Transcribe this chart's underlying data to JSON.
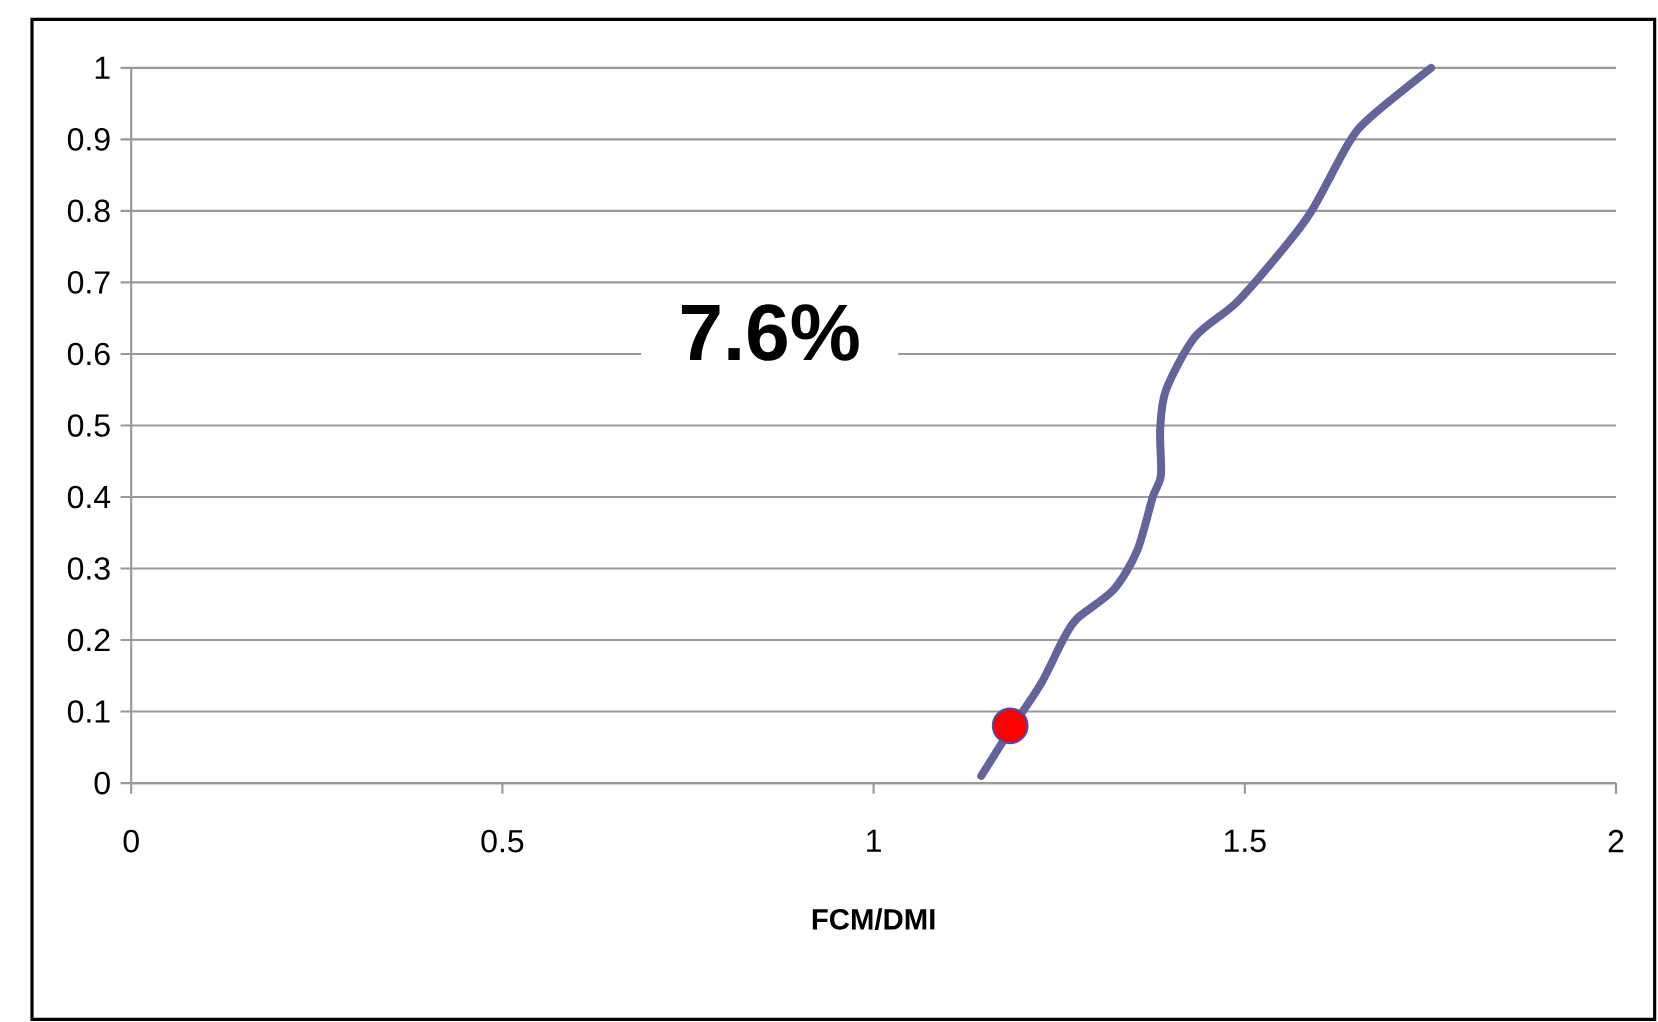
{
  "chart_data": {
    "type": "line",
    "xlabel": "FCM/DMI",
    "annotations": [
      "7.6%"
    ],
    "xlim": [
      0,
      2
    ],
    "xticks": [
      0,
      0.5,
      1,
      1.5,
      2
    ],
    "ylim": [
      0,
      1
    ],
    "yticks": [
      0,
      0.1,
      0.2,
      0.3,
      0.4,
      0.5,
      0.6,
      0.7,
      0.8,
      0.9,
      1
    ],
    "grid": "y",
    "series": [
      {
        "color": "#64649c",
        "line_style": "solid",
        "marker": "none",
        "x": [
          1.145,
          1.184,
          1.226,
          1.255,
          1.274,
          1.323,
          1.355,
          1.376,
          1.387,
          1.386,
          1.394,
          1.433,
          1.49,
          1.554,
          1.59,
          1.64,
          1.668,
          1.751
        ],
        "values": [
          0.01,
          0.074,
          0.14,
          0.2,
          0.23,
          0.27,
          0.325,
          0.4,
          0.43,
          0.495,
          0.55,
          0.624,
          0.673,
          0.75,
          0.8,
          0.895,
          0.93,
          1.0
        ]
      },
      {
        "type": "scatter",
        "color": "#ff0000",
        "marker": "circle",
        "x": [
          1.184
        ],
        "values": [
          0.08
        ]
      }
    ]
  }
}
